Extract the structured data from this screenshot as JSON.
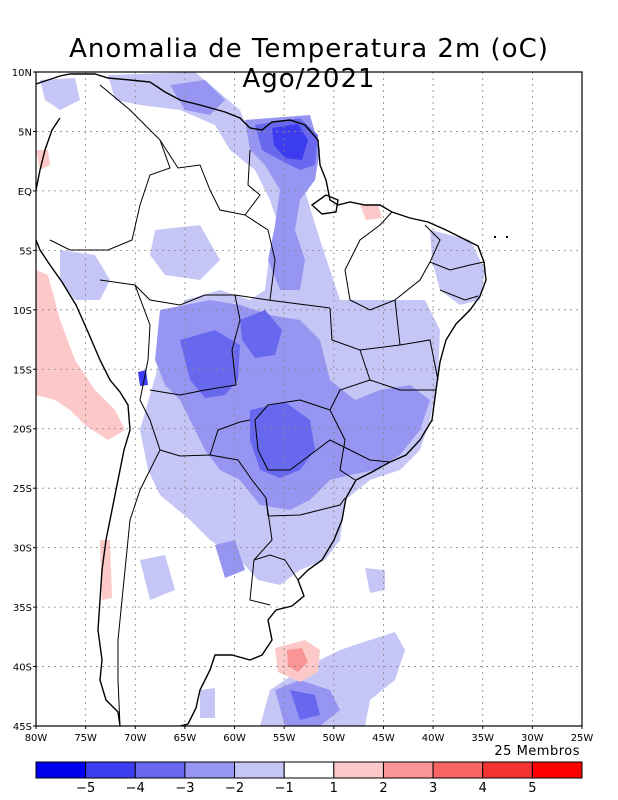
{
  "title": "Anomalia de Temperatura 2m (oC) Ago/2021",
  "map": {
    "lon_min": -80,
    "lon_max": -25,
    "lat_min": -45,
    "lat_max": 10,
    "lat_labels": [
      "10N",
      "5N",
      "EQ",
      "5S",
      "10S",
      "15S",
      "20S",
      "25S",
      "30S",
      "35S",
      "40S",
      "45S"
    ],
    "lon_labels": [
      "80W",
      "75W",
      "70W",
      "65W",
      "60W",
      "55W",
      "50W",
      "45W",
      "40W",
      "35W",
      "30W",
      "25W"
    ]
  },
  "members_label": "25 Membros",
  "colorbar": {
    "colors": [
      "#0000ee",
      "#3c3cf0",
      "#6868ee",
      "#9696f2",
      "#c6c6f6",
      "#ffffff",
      "#fdc8c8",
      "#fb9494",
      "#f86464",
      "#f43232",
      "#ff0000"
    ],
    "tick_labels": [
      "−5",
      "−4",
      "−3",
      "−2",
      "−1",
      "1",
      "2",
      "3",
      "4",
      "5"
    ]
  },
  "legend_colors": {
    "strong_cold": "#6868ee",
    "cold": "#9696f2",
    "mild_cold": "#c6c6f6",
    "mild_warm": "#fdc8c8",
    "warm": "#fb9494"
  }
}
